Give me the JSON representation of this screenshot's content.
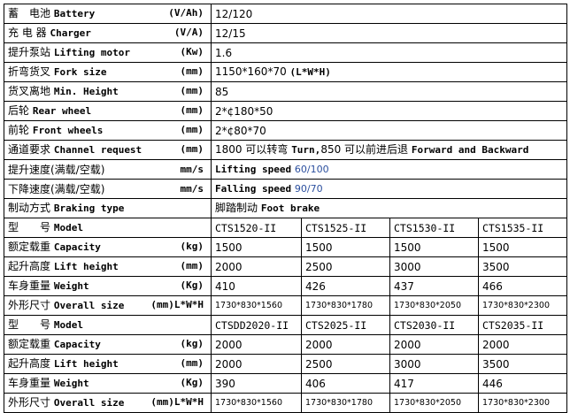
{
  "accent_color": "#2b4f9e",
  "specs": [
    {
      "cn": "蓄　电池",
      "en": "Battery",
      "unit": "(V/Ah)",
      "value": "12/120"
    },
    {
      "cn": "充 电 器",
      "en": "Charger",
      "unit": "(V/A)",
      "value": "12/15"
    },
    {
      "cn": "提升泵站",
      "en": "Lifting motor",
      "unit": "(Kw)",
      "value": "1.6"
    },
    {
      "cn": "折弯货叉",
      "en": "Fork size",
      "unit": "(mm)",
      "value": "1150*160*70",
      "value_en": "(L*W*H)"
    },
    {
      "cn": "货叉离地",
      "en": "Min. Height",
      "unit": "(mm)",
      "value": "85"
    },
    {
      "cn": "后轮",
      "en": "Rear wheel",
      "unit": "(mm)",
      "value": "2*¢180*50"
    },
    {
      "cn": "前轮",
      "en": "Front wheels",
      "unit": "(mm)",
      "value": "2*¢80*70"
    },
    {
      "cn": "通道要求",
      "en": "Channel request",
      "unit": "(mm)",
      "value": "1800 可以转弯",
      "value_en": "Turn,",
      "value2": "850 可以前进后退",
      "value_en2": "Forward and Backward"
    },
    {
      "cn": "提升速度(满载/空载)",
      "en": "",
      "unit": "mm/s",
      "value_en": "Lifting speed",
      "value_blue": "60/100"
    },
    {
      "cn": "下降速度(满载/空载)",
      "en": "",
      "unit": "mm/s",
      "value_en": "Falling speed",
      "value_blue": "90/70"
    },
    {
      "cn": "制动方式",
      "en": "Braking type",
      "unit": "",
      "value": "脚踏制动",
      "value_en": "Foot brake"
    }
  ],
  "groups": [
    {
      "rows": [
        {
          "cn": "型　　号",
          "en": "Model",
          "unit": "",
          "values": [
            "CTS1520-II",
            "CTS1525-II",
            "CTS1530-II",
            "CTS1535-II"
          ]
        },
        {
          "cn": "额定载重",
          "en": "Capacity",
          "unit": "(kg)",
          "values": [
            "1500",
            "1500",
            "1500",
            "1500"
          ]
        },
        {
          "cn": "起升高度",
          "en": "Lift height",
          "unit": "(mm)",
          "values": [
            "2000",
            "2500",
            "3000",
            "3500"
          ]
        },
        {
          "cn": "车身重量",
          "en": "Weight",
          "unit": "(Kg)",
          "values": [
            "410",
            "426",
            "437",
            "466"
          ]
        },
        {
          "cn": "外形尺寸",
          "en": "Overall size",
          "unit": "(mm)L*W*H",
          "values": [
            "1730*830*1560",
            "1730*830*1780",
            "1730*830*2050",
            "1730*830*2300"
          ]
        }
      ]
    },
    {
      "rows": [
        {
          "cn": "型　　号",
          "en": "Model",
          "unit": "",
          "values": [
            "CTSDD2020-II",
            "CTS2025-II",
            "CTS2030-II",
            "CTS2035-II"
          ]
        },
        {
          "cn": "额定载重",
          "en": "Capacity",
          "unit": "(kg)",
          "values": [
            "2000",
            "2000",
            "2000",
            "2000"
          ]
        },
        {
          "cn": "起升高度",
          "en": "Lift height",
          "unit": "(mm)",
          "values": [
            "2000",
            "2500",
            "3000",
            "3500"
          ]
        },
        {
          "cn": "车身重量",
          "en": "Weight",
          "unit": "(Kg)",
          "values": [
            "390",
            "406",
            "417",
            "446"
          ]
        },
        {
          "cn": "外形尺寸",
          "en": "Overall size",
          "unit": "(mm)L*W*H",
          "values": [
            "1730*830*1560",
            "1730*830*1780",
            "1730*830*2050",
            "1730*830*2300"
          ]
        }
      ]
    }
  ]
}
